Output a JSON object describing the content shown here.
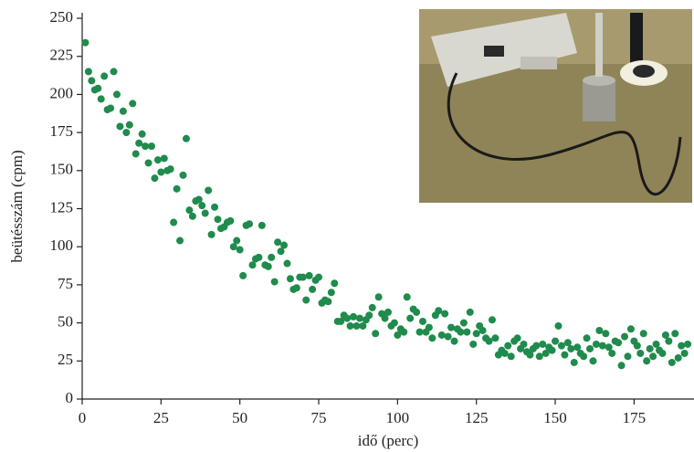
{
  "chart_data": {
    "type": "scatter",
    "x_label": "idő (perc)",
    "y_label": "beütésszám (cpm)",
    "color": "#1f8b4c",
    "xlim": [
      0,
      194
    ],
    "ylim": [
      0,
      252
    ],
    "xticks": [
      0,
      25,
      50,
      75,
      100,
      125,
      150,
      175
    ],
    "yticks": [
      0,
      25,
      50,
      75,
      100,
      125,
      150,
      175,
      200,
      225,
      250
    ],
    "x": [
      1,
      2,
      3,
      4,
      5,
      6,
      7,
      8,
      9,
      10,
      11,
      12,
      13,
      14,
      15,
      16,
      17,
      18,
      19,
      20,
      21,
      22,
      23,
      24,
      25,
      26,
      27,
      28,
      29,
      30,
      31,
      32,
      33,
      34,
      35,
      36,
      37,
      38,
      39,
      40,
      41,
      42,
      43,
      44,
      45,
      46,
      47,
      48,
      49,
      50,
      51,
      52,
      53,
      54,
      55,
      56,
      57,
      58,
      59,
      60,
      61,
      62,
      63,
      64,
      65,
      66,
      67,
      68,
      69,
      70,
      71,
      72,
      73,
      74,
      75,
      76,
      77,
      78,
      79,
      80,
      81,
      82,
      83,
      84,
      85,
      86,
      87,
      88,
      89,
      90,
      91,
      92,
      93,
      94,
      95,
      96,
      97,
      98,
      99,
      100,
      101,
      102,
      103,
      104,
      105,
      106,
      107,
      108,
      109,
      110,
      111,
      112,
      113,
      114,
      115,
      116,
      117,
      118,
      119,
      120,
      121,
      122,
      123,
      124,
      125,
      126,
      127,
      128,
      129,
      130,
      131,
      132,
      133,
      134,
      135,
      136,
      137,
      138,
      139,
      140,
      141,
      142,
      143,
      144,
      145,
      146,
      147,
      148,
      149,
      150,
      151,
      152,
      153,
      154,
      155,
      156,
      157,
      158,
      159,
      160,
      161,
      162,
      163,
      164,
      165,
      166,
      167,
      168,
      169,
      170,
      171,
      172,
      173,
      174,
      175,
      176,
      177,
      178,
      179,
      180,
      181,
      182,
      183,
      184,
      185,
      186,
      187,
      188,
      189,
      190,
      191,
      192
    ],
    "values": [
      234,
      215,
      209,
      203,
      204,
      197,
      212,
      190,
      191,
      215,
      200,
      179,
      189,
      175,
      180,
      194,
      161,
      168,
      174,
      166,
      155,
      166,
      145,
      157,
      149,
      158,
      150,
      151,
      116,
      138,
      104,
      147,
      171,
      124,
      120,
      130,
      131,
      127,
      122,
      137,
      108,
      126,
      118,
      112,
      113,
      116,
      117,
      100,
      104,
      98,
      81,
      114,
      115,
      88,
      92,
      93,
      114,
      88,
      87,
      93,
      77,
      103,
      97,
      101,
      89,
      79,
      72,
      73,
      80,
      80,
      65,
      81,
      72,
      78,
      80,
      63,
      65,
      64,
      70,
      76,
      51,
      51,
      55,
      53,
      48,
      54,
      48,
      53,
      48,
      52,
      55,
      60,
      43,
      67,
      56,
      53,
      57,
      48,
      50,
      42,
      46,
      44,
      67,
      53,
      59,
      57,
      44,
      51,
      44,
      47,
      40,
      55,
      58,
      42,
      56,
      41,
      47,
      38,
      46,
      44,
      50,
      44,
      57,
      36,
      43,
      48,
      45,
      40,
      38,
      52,
      40,
      29,
      32,
      30,
      35,
      28,
      38,
      40,
      33,
      36,
      31,
      29,
      33,
      35,
      28,
      36,
      30,
      34,
      32,
      38,
      48,
      35,
      29,
      37,
      33,
      24,
      34,
      30,
      28,
      40,
      33,
      25,
      36,
      45,
      35,
      43,
      34,
      30,
      38,
      37,
      22,
      41,
      28,
      46,
      38,
      35,
      30,
      43,
      25,
      33,
      28,
      36,
      32,
      30,
      42,
      38,
      24,
      43,
      27,
      35,
      30,
      36
    ]
  }
}
